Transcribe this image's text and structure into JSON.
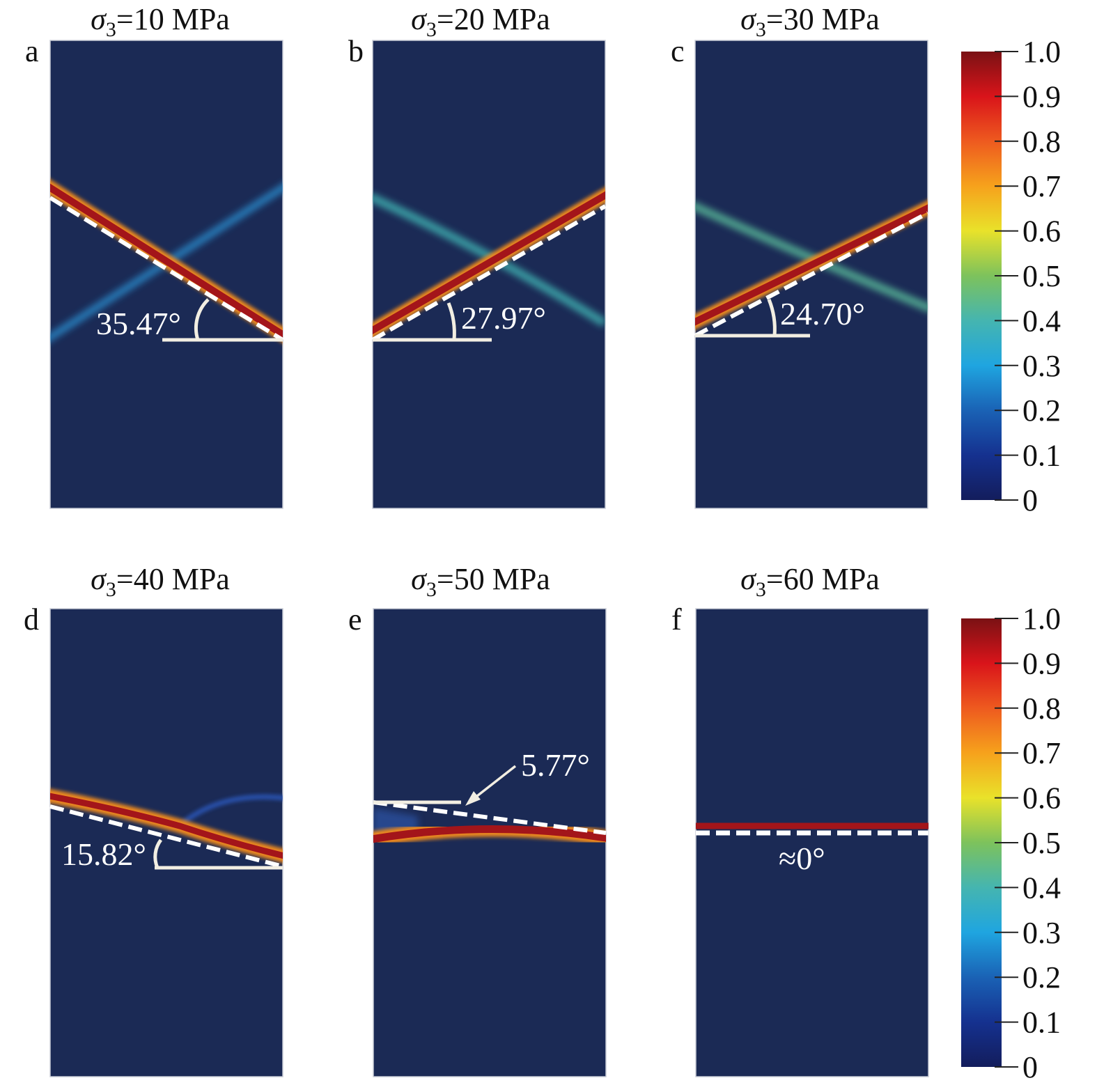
{
  "colorscale": {
    "ticks": [
      "1.0",
      "0.9",
      "0.8",
      "0.7",
      "0.6",
      "0.5",
      "0.4",
      "0.3",
      "0.2",
      "0.1",
      "0"
    ],
    "stops": [
      "#7a1114",
      "#d9141a",
      "#ee5a1f",
      "#f6a21c",
      "#e9e22a",
      "#7dc25c",
      "#45b5b0",
      "#1fa5e0",
      "#1a62b5",
      "#15318f",
      "#131d5c"
    ],
    "background": "#1b2a55"
  },
  "panels": [
    {
      "letter": "a",
      "symbol": "σ",
      "subscript": "3",
      "title_rest": "=10 MPa",
      "angle_label": "35.47°",
      "main_band_angle_deg": 35.47,
      "secondary_band": true
    },
    {
      "letter": "b",
      "symbol": "σ",
      "subscript": "3",
      "title_rest": "=20 MPa",
      "angle_label": "27.97°",
      "main_band_angle_deg": 27.97,
      "secondary_band": true
    },
    {
      "letter": "c",
      "symbol": "σ",
      "subscript": "3",
      "title_rest": "=30 MPa",
      "angle_label": "24.70°",
      "main_band_angle_deg": 24.7,
      "secondary_band": true
    },
    {
      "letter": "d",
      "symbol": "σ",
      "subscript": "3",
      "title_rest": "=40 MPa",
      "angle_label": "15.82°",
      "main_band_angle_deg": 15.82,
      "secondary_band": true
    },
    {
      "letter": "e",
      "symbol": "σ",
      "subscript": "3",
      "title_rest": "=50 MPa",
      "angle_label": "5.77°",
      "main_band_angle_deg": 5.77,
      "secondary_band": false
    },
    {
      "letter": "f",
      "symbol": "σ",
      "subscript": "3",
      "title_rest": "=60 MPa",
      "angle_label": "≈0°",
      "main_band_angle_deg": 0,
      "secondary_band": false
    }
  ]
}
